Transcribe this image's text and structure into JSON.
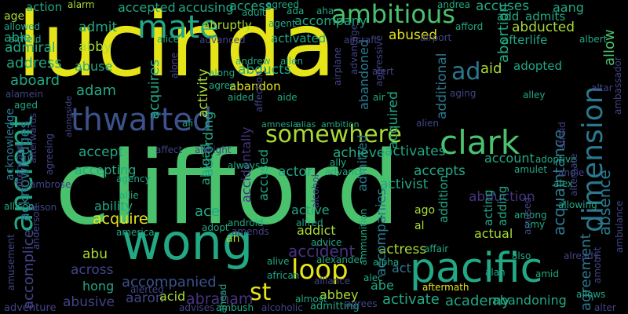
{
  "palette": {
    "yellow": "#e5e419",
    "lime": "#a8db34",
    "green": "#4ac16d",
    "teal": "#22a884",
    "cyan": "#2a788e",
    "blue": "#3b528b",
    "indigo": "#414487",
    "purple": "#46327e",
    "violet": "#440154"
  },
  "words": [
    {
      "text": "lucinda",
      "c": "yellow"
    },
    {
      "text": "clifford",
      "c": "green"
    },
    {
      "text": "wong",
      "c": "teal"
    },
    {
      "text": "pacific",
      "c": "teal"
    },
    {
      "text": "dimension",
      "c": "cyan"
    },
    {
      "text": "ancient",
      "c": "teal"
    },
    {
      "text": "clark",
      "c": "green"
    },
    {
      "text": "somewhere",
      "c": "lime"
    },
    {
      "text": "thwarted",
      "c": "blue"
    },
    {
      "text": "mate",
      "c": "teal"
    },
    {
      "text": "ambitious",
      "c": "green"
    },
    {
      "text": "loop",
      "c": "yellow"
    },
    {
      "text": "st",
      "c": "yellow"
    },
    {
      "text": "accidentally",
      "c": "purple"
    },
    {
      "text": "acknowledges",
      "c": "cyan"
    },
    {
      "text": "acknowledge",
      "c": "cyan"
    },
    {
      "text": "acquaintance",
      "c": "cyan"
    },
    {
      "text": "agreement",
      "c": "cyan"
    },
    {
      "text": "absence",
      "c": "cyan"
    },
    {
      "text": "allow",
      "c": "green"
    },
    {
      "text": "accomplice",
      "c": "indigo"
    },
    {
      "text": "aaron",
      "c": "indigo"
    },
    {
      "text": "acid",
      "c": "lime"
    },
    {
      "text": "abraham",
      "c": "purple"
    },
    {
      "text": "abbey",
      "c": "lime"
    },
    {
      "text": "activate",
      "c": "teal"
    },
    {
      "text": "academy",
      "c": "teal"
    },
    {
      "text": "abandoning",
      "c": "teal"
    },
    {
      "text": "abusive",
      "c": "indigo"
    },
    {
      "text": "hong",
      "c": "teal"
    },
    {
      "text": "across",
      "c": "indigo"
    },
    {
      "text": "abu",
      "c": "lime"
    },
    {
      "text": "accompanied",
      "c": "blue"
    },
    {
      "text": "actress",
      "c": "lime"
    },
    {
      "text": "act",
      "c": "cyan"
    },
    {
      "text": "abe",
      "c": "teal"
    },
    {
      "text": "accompanies",
      "c": "cyan"
    },
    {
      "text": "admitted",
      "c": "cyan"
    },
    {
      "text": "accident",
      "c": "purple"
    },
    {
      "text": "addict",
      "c": "lime"
    },
    {
      "text": "active",
      "c": "teal"
    },
    {
      "text": "acquire",
      "c": "yellow"
    },
    {
      "text": "ace",
      "c": "teal"
    },
    {
      "text": "ability",
      "c": "teal"
    },
    {
      "text": "accept",
      "c": "teal"
    },
    {
      "text": "accepting",
      "c": "teal"
    },
    {
      "text": "accused",
      "c": "teal"
    },
    {
      "text": "actor",
      "c": "teal"
    },
    {
      "text": "achieve",
      "c": "teal"
    },
    {
      "text": "activates",
      "c": "teal"
    },
    {
      "text": "accepts",
      "c": "teal"
    },
    {
      "text": "activist",
      "c": "teal"
    },
    {
      "text": "account",
      "c": "teal"
    },
    {
      "text": "abduction",
      "c": "purple"
    },
    {
      "text": "actual",
      "c": "lime"
    },
    {
      "text": "acquired",
      "c": "teal"
    },
    {
      "text": "according",
      "c": "teal"
    },
    {
      "text": "abigail",
      "c": "teal"
    },
    {
      "text": "activity",
      "c": "lime"
    },
    {
      "text": "acquires",
      "c": "teal"
    },
    {
      "text": "adam",
      "c": "teal"
    },
    {
      "text": "abuse",
      "c": "teal"
    },
    {
      "text": "abby",
      "c": "lime"
    },
    {
      "text": "admit",
      "c": "teal"
    },
    {
      "text": "accepted",
      "c": "teal"
    },
    {
      "text": "accusing",
      "c": "teal"
    },
    {
      "text": "access",
      "c": "teal"
    },
    {
      "text": "accuses",
      "c": "teal"
    },
    {
      "text": "aang",
      "c": "teal"
    },
    {
      "text": "add",
      "c": "teal"
    },
    {
      "text": "admits",
      "c": "teal"
    },
    {
      "text": "abducted",
      "c": "lime"
    },
    {
      "text": "accompany",
      "c": "teal"
    },
    {
      "text": "activated",
      "c": "teal"
    },
    {
      "text": "abused",
      "c": "yellow"
    },
    {
      "text": "abruptly",
      "c": "lime"
    },
    {
      "text": "abducts",
      "c": "teal"
    },
    {
      "text": "abandon",
      "c": "yellow"
    },
    {
      "text": "abandoned",
      "c": "cyan"
    },
    {
      "text": "additional",
      "c": "cyan"
    },
    {
      "text": "ad",
      "c": "cyan"
    },
    {
      "text": "aid",
      "c": "lime"
    },
    {
      "text": "abortion",
      "c": "teal"
    },
    {
      "text": "adopted",
      "c": "teal"
    },
    {
      "text": "afterlife",
      "c": "teal"
    },
    {
      "text": "address",
      "c": "teal"
    },
    {
      "text": "aboard",
      "c": "teal"
    },
    {
      "text": "admiral",
      "c": "teal"
    },
    {
      "text": "able",
      "c": "teal"
    },
    {
      "text": "action",
      "c": "teal"
    },
    {
      "text": "adding",
      "c": "teal"
    },
    {
      "text": "addition",
      "c": "teal"
    },
    {
      "text": "acting",
      "c": "teal"
    },
    {
      "text": "age",
      "c": "lime"
    },
    {
      "text": "ago",
      "c": "lime"
    },
    {
      "text": "al",
      "c": "lime"
    },
    {
      "text": "ah",
      "c": "lime"
    },
    {
      "text": "alarm",
      "c": "lime"
    },
    {
      "text": "agreed",
      "c": "teal"
    },
    {
      "text": "andrea",
      "c": "teal"
    },
    {
      "text": "afford",
      "c": "teal"
    },
    {
      "text": "ada",
      "c": "teal"
    },
    {
      "text": "aha",
      "c": "teal"
    },
    {
      "text": "adult",
      "c": "teal"
    },
    {
      "text": "agent",
      "c": "teal"
    },
    {
      "text": "allowed",
      "c": "teal"
    },
    {
      "text": "airfield",
      "c": "teal"
    },
    {
      "text": "alice",
      "c": "teal"
    },
    {
      "text": "advanced",
      "c": "indigo"
    },
    {
      "text": "aircraft",
      "c": "indigo"
    },
    {
      "text": "airport",
      "c": "indigo"
    },
    {
      "text": "albert",
      "c": "teal"
    },
    {
      "text": "alamein",
      "c": "indigo"
    },
    {
      "text": "aged",
      "c": "teal"
    },
    {
      "text": "andrew",
      "c": "teal"
    },
    {
      "text": "allen",
      "c": "teal"
    },
    {
      "text": "alone",
      "c": "indigo"
    },
    {
      "text": "along",
      "c": "teal"
    },
    {
      "text": "agree",
      "c": "teal"
    },
    {
      "text": "advantage",
      "c": "indigo"
    },
    {
      "text": "alert",
      "c": "indigo"
    },
    {
      "text": "airplane",
      "c": "indigo"
    },
    {
      "text": "aggressive",
      "c": "indigo"
    },
    {
      "text": "aging",
      "c": "indigo"
    },
    {
      "text": "alley",
      "c": "teal"
    },
    {
      "text": "aided",
      "c": "teal"
    },
    {
      "text": "aide",
      "c": "teal"
    },
    {
      "text": "air",
      "c": "teal"
    },
    {
      "text": "altar",
      "c": "indigo"
    },
    {
      "text": "ambassador",
      "c": "indigo"
    },
    {
      "text": "ali",
      "c": "teal"
    },
    {
      "text": "alien",
      "c": "indigo"
    },
    {
      "text": "afraid",
      "c": "indigo"
    },
    {
      "text": "ahead",
      "c": "teal"
    },
    {
      "text": "affection",
      "c": "indigo"
    },
    {
      "text": "amnesia",
      "c": "teal"
    },
    {
      "text": "alias",
      "c": "teal"
    },
    {
      "text": "ambition",
      "c": "teal"
    },
    {
      "text": "afterwards",
      "c": "indigo"
    },
    {
      "text": "alongside",
      "c": "indigo"
    },
    {
      "text": "agreeing",
      "c": "indigo"
    },
    {
      "text": "affect",
      "c": "indigo"
    },
    {
      "text": "albright",
      "c": "indigo"
    },
    {
      "text": "always",
      "c": "teal"
    },
    {
      "text": "ally",
      "c": "teal"
    },
    {
      "text": "amulet",
      "c": "teal"
    },
    {
      "text": "adoptive",
      "c": "teal"
    },
    {
      "text": "andie",
      "c": "indigo"
    },
    {
      "text": "afterward",
      "c": "indigo"
    },
    {
      "text": "ambrose",
      "c": "indigo"
    },
    {
      "text": "alison",
      "c": "indigo"
    },
    {
      "text": "agency",
      "c": "teal"
    },
    {
      "text": "advance",
      "c": "teal"
    },
    {
      "text": "alex",
      "c": "teal"
    },
    {
      "text": "allie",
      "c": "teal"
    },
    {
      "text": "allison",
      "c": "teal"
    },
    {
      "text": "alfred",
      "c": "teal"
    },
    {
      "text": "alternate",
      "c": "indigo"
    },
    {
      "text": "alcohol",
      "c": "indigo"
    },
    {
      "text": "among",
      "c": "teal"
    },
    {
      "text": "allowing",
      "c": "teal"
    },
    {
      "text": "america",
      "c": "teal"
    },
    {
      "text": "adopt",
      "c": "teal"
    },
    {
      "text": "android",
      "c": "teal"
    },
    {
      "text": "amends",
      "c": "indigo"
    },
    {
      "text": "amy",
      "c": "teal"
    },
    {
      "text": "amused",
      "c": "indigo"
    },
    {
      "text": "ambulance",
      "c": "indigo"
    },
    {
      "text": "ammunition",
      "c": "teal"
    },
    {
      "text": "anderson",
      "c": "indigo"
    },
    {
      "text": "affair",
      "c": "teal"
    },
    {
      "text": "advice",
      "c": "teal"
    },
    {
      "text": "alpha",
      "c": "teal"
    },
    {
      "text": "also",
      "c": "teal"
    },
    {
      "text": "already",
      "c": "indigo"
    },
    {
      "text": "alive",
      "c": "teal"
    },
    {
      "text": "alexander",
      "c": "teal"
    },
    {
      "text": "amount",
      "c": "indigo"
    },
    {
      "text": "amusement",
      "c": "indigo"
    },
    {
      "text": "african",
      "c": "teal"
    },
    {
      "text": "alliance",
      "c": "indigo"
    },
    {
      "text": "alec",
      "c": "teal"
    },
    {
      "text": "amid",
      "c": "teal"
    },
    {
      "text": "alan",
      "c": "teal"
    },
    {
      "text": "alerted",
      "c": "indigo"
    },
    {
      "text": "almost",
      "c": "teal"
    },
    {
      "text": "aftermath",
      "c": "yellow"
    },
    {
      "text": "allows",
      "c": "teal"
    },
    {
      "text": "adventure",
      "c": "indigo"
    },
    {
      "text": "advises",
      "c": "indigo"
    },
    {
      "text": "ambush",
      "c": "teal"
    },
    {
      "text": "alcoholic",
      "c": "indigo"
    },
    {
      "text": "admitting",
      "c": "teal"
    },
    {
      "text": "agrees",
      "c": "indigo"
    },
    {
      "text": "alter",
      "c": "indigo"
    }
  ]
}
